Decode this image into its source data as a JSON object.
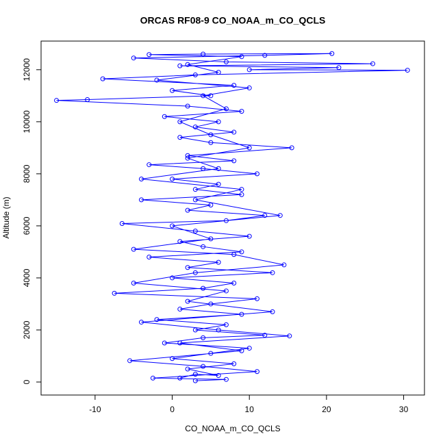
{
  "chart_data": {
    "type": "line",
    "markers": true,
    "title": "ORCAS RF08-9 CO_NOAA_m_CO_QCLS",
    "xlabel": "CO_NOAA_m_CO_QCLS",
    "ylabel": "Altitude (m)",
    "color": "#0000ff",
    "xlim": [
      -17,
      32.7
    ],
    "ylim": [
      -500,
      13100
    ],
    "xticks": [
      -10,
      0,
      10,
      20,
      30
    ],
    "yticks": [
      0,
      2000,
      4000,
      6000,
      8000,
      10000,
      12000
    ],
    "x": [
      1,
      3,
      6,
      2,
      8,
      0,
      5,
      10,
      -1,
      4,
      12,
      3,
      7,
      -2,
      9,
      1,
      5,
      11,
      -7.5,
      4,
      8,
      0,
      13,
      2,
      6,
      -3,
      9,
      4,
      1,
      10,
      3,
      -6.5,
      7,
      12,
      2,
      5,
      -4,
      9,
      3,
      6,
      0,
      11,
      4,
      -3,
      8,
      2,
      15.5,
      5,
      1,
      8,
      3,
      6,
      -1,
      9,
      2,
      -15,
      -11,
      5,
      0,
      8,
      -9,
      3,
      30.5,
      10,
      21.6,
      1,
      26,
      7,
      -5,
      12,
      20.7,
      4,
      -3,
      9,
      2,
      6,
      -2,
      10,
      4,
      7,
      1,
      5,
      10,
      2,
      6,
      -4,
      9,
      3,
      14,
      0,
      5,
      -5,
      8,
      14.5,
      3,
      -5,
      7,
      2,
      13,
      -4,
      6,
      15.2,
      1,
      9,
      -5.5,
      4,
      11,
      -2.5,
      7,
      3
    ],
    "values": [
      150,
      300,
      250,
      500,
      700,
      900,
      1100,
      1300,
      1500,
      1700,
      1800,
      2000,
      2200,
      2400,
      2600,
      2800,
      3000,
      3200,
      3410,
      3600,
      3800,
      4000,
      4200,
      4400,
      4600,
      4800,
      5000,
      5200,
      5400,
      5600,
      5800,
      6090,
      6200,
      6400,
      6600,
      6800,
      7000,
      7200,
      7400,
      7600,
      7800,
      8000,
      8200,
      8350,
      8500,
      8700,
      9000,
      9200,
      9400,
      9600,
      9800,
      10000,
      10200,
      10400,
      10600,
      10820,
      10850,
      11000,
      11200,
      11400,
      11650,
      11800,
      11980,
      12000,
      12080,
      12150,
      12230,
      12300,
      12450,
      12550,
      12620,
      12600,
      12580,
      12500,
      12200,
      11900,
      11600,
      11300,
      11000,
      10500,
      10000,
      9500,
      9000,
      8600,
      8200,
      7800,
      7400,
      7000,
      6400,
      6000,
      5500,
      5100,
      4900,
      4500,
      4200,
      3800,
      3500,
      3100,
      2700,
      2300,
      2000,
      1770,
      1500,
      1200,
      820,
      600,
      400,
      150,
      100,
      50
    ]
  }
}
